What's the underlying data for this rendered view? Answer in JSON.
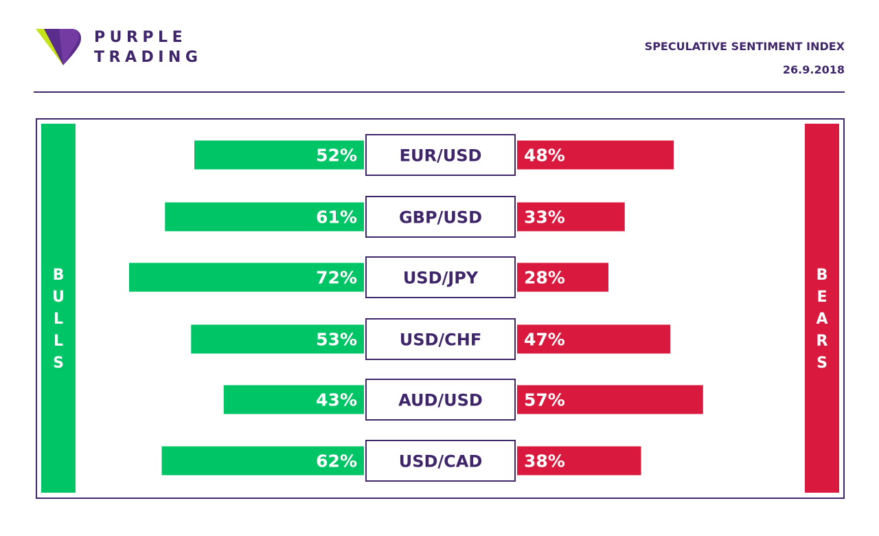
{
  "header": {
    "brand_line1": "PURPLE",
    "brand_line2": "TRADING",
    "title": "SPECULATIVE SENTIMENT INDEX",
    "date": "26.9.2018"
  },
  "sides": {
    "bulls": [
      "B",
      "U",
      "L",
      "L",
      "S"
    ],
    "bears": [
      "B",
      "E",
      "A",
      "R",
      "S"
    ]
  },
  "colors": {
    "bulls": "#00c566",
    "bears": "#d91a3e",
    "purple": "#3f2569",
    "lime": "#c6e31a"
  },
  "chart_data": {
    "type": "bar",
    "title": "SPECULATIVE SENTIMENT INDEX",
    "categories": [
      "EUR/USD",
      "GBP/USD",
      "USD/JPY",
      "USD/CHF",
      "AUD/USD",
      "USD/CAD"
    ],
    "series": [
      {
        "name": "BULLS",
        "values": [
          52,
          61,
          72,
          53,
          43,
          62
        ]
      },
      {
        "name": "BEARS",
        "values": [
          48,
          33,
          28,
          47,
          57,
          38
        ]
      }
    ],
    "unit": "%",
    "xlim": [
      0,
      100
    ]
  }
}
